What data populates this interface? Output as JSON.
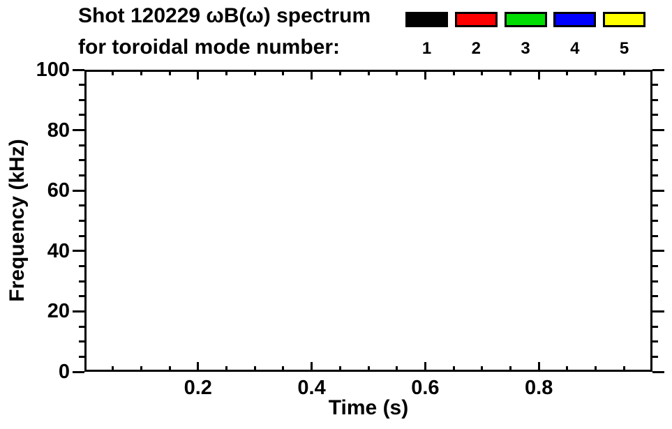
{
  "chart_data": {
    "type": "scatter",
    "title": "Shot 120229 ωB(ω) spectrum",
    "subtitle": "for toroidal mode number:",
    "xlabel": "Time (s)",
    "ylabel": "Frequency (kHz)",
    "xlim": [
      0.0,
      1.0
    ],
    "ylim": [
      0,
      100
    ],
    "x_major_ticks": [
      0.2,
      0.4,
      0.6,
      0.8
    ],
    "x_major_tick_labels": [
      "0.2",
      "0.4",
      "0.6",
      "0.8"
    ],
    "x_minor_tick_interval": 0.05,
    "y_major_ticks": [
      0,
      20,
      40,
      60,
      80,
      100
    ],
    "y_major_tick_labels": [
      "0",
      "20",
      "40",
      "60",
      "80",
      "100"
    ],
    "y_minor_tick_interval": 5,
    "grid": false,
    "background_color": "#FFFFFF",
    "axis_color": "#000000",
    "legend": {
      "position": "top-right",
      "entries": [
        {
          "label": "1",
          "color": "#000000"
        },
        {
          "label": "2",
          "color": "#FF0000"
        },
        {
          "label": "3",
          "color": "#00DD00"
        },
        {
          "label": "4",
          "color": "#0000FF"
        },
        {
          "label": "5",
          "color": "#FFFF00"
        }
      ]
    },
    "series": []
  }
}
